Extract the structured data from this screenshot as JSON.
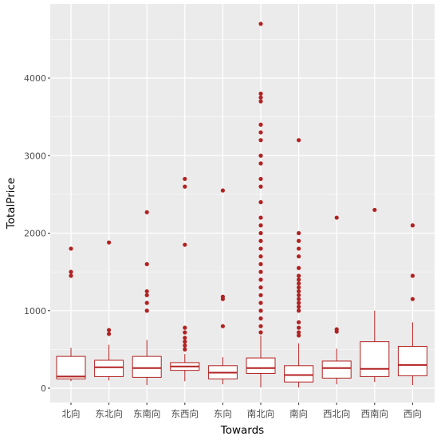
{
  "chart_data": {
    "type": "boxplot",
    "xlabel": "Towards",
    "ylabel": "TotalPrice",
    "ylim": [
      0,
      4700
    ],
    "yticks": [
      0,
      1000,
      2000,
      3000,
      4000
    ],
    "grid": true,
    "colors": {
      "panel": "#ebebeb",
      "grid": "#ffffff",
      "box": "#b22222",
      "fill": "#ffffff",
      "text": "#4d4d4d",
      "axis_title": "#000000"
    },
    "categories": [
      "北向",
      "东北向",
      "东南向",
      "东西向",
      "东向",
      "南北向",
      "南向",
      "西北向",
      "西南向",
      "西向"
    ],
    "boxes": [
      {
        "lower": 90,
        "q1": 120,
        "median": 150,
        "q3": 410,
        "upper": 520,
        "outliers": [
          1450,
          1500,
          1800
        ]
      },
      {
        "lower": 100,
        "q1": 150,
        "median": 270,
        "q3": 360,
        "upper": 560,
        "outliers": [
          700,
          750,
          1880
        ]
      },
      {
        "lower": 40,
        "q1": 140,
        "median": 260,
        "q3": 410,
        "upper": 620,
        "outliers": [
          1000,
          1100,
          1200,
          1250,
          1600,
          2270
        ]
      },
      {
        "lower": 90,
        "q1": 230,
        "median": 280,
        "q3": 330,
        "upper": 440,
        "outliers": [
          500,
          550,
          600,
          650,
          720,
          780,
          1850,
          2600,
          2700
        ]
      },
      {
        "lower": 50,
        "q1": 120,
        "median": 200,
        "q3": 290,
        "upper": 400,
        "outliers": [
          800,
          1150,
          1180,
          2550
        ]
      },
      {
        "lower": 10,
        "q1": 190,
        "median": 260,
        "q3": 390,
        "upper": 680,
        "outliers": [
          720,
          800,
          900,
          1000,
          1100,
          1200,
          1300,
          1400,
          1500,
          1600,
          1700,
          1800,
          1900,
          2000,
          2100,
          2200,
          2400,
          2600,
          2700,
          2900,
          3000,
          3200,
          3300,
          3400,
          3700,
          3750,
          3800,
          4700
        ]
      },
      {
        "lower": 10,
        "q1": 80,
        "median": 170,
        "q3": 290,
        "upper": 580,
        "outliers": [
          680,
          720,
          780,
          850,
          1000,
          1050,
          1100,
          1150,
          1200,
          1250,
          1300,
          1350,
          1400,
          1450,
          1550,
          1700,
          1800,
          1900,
          2000,
          3200
        ]
      },
      {
        "lower": 50,
        "q1": 130,
        "median": 260,
        "q3": 350,
        "upper": 510,
        "outliers": [
          730,
          760,
          2200
        ]
      },
      {
        "lower": 80,
        "q1": 150,
        "median": 250,
        "q3": 600,
        "upper": 1000,
        "outliers": [
          2300
        ]
      },
      {
        "lower": 40,
        "q1": 160,
        "median": 300,
        "q3": 540,
        "upper": 850,
        "outliers": [
          1150,
          1450,
          2100
        ]
      }
    ]
  }
}
